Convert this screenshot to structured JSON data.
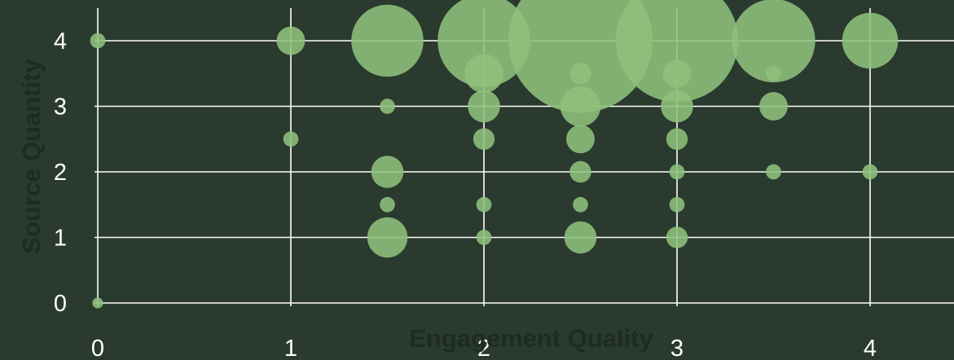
{
  "chart_data": {
    "type": "scatter",
    "variant": "bubble",
    "xlabel": "Engagement Quality",
    "ylabel": "Source Quantity",
    "xlim": [
      0,
      4.4
    ],
    "ylim": [
      0,
      4.4
    ],
    "x_ticks": [
      "0",
      "1",
      "2",
      "3",
      "4"
    ],
    "y_ticks": [
      "0",
      "1",
      "2",
      "3",
      "4"
    ],
    "grid": true,
    "legend": "none",
    "colors": {
      "background": "#2a3a2f",
      "marker": "#8ec07c",
      "grid": "#ffffff",
      "tick_text": "#ffffff",
      "axis_title": "#1d2b22"
    },
    "size_unit": "count",
    "points": [
      {
        "x": 0,
        "y": 0,
        "size": 1
      },
      {
        "x": 0,
        "y": 4,
        "size": 2
      },
      {
        "x": 1,
        "y": 2.5,
        "size": 2
      },
      {
        "x": 1,
        "y": 4,
        "size": 7
      },
      {
        "x": 1.5,
        "y": 1,
        "size": 14
      },
      {
        "x": 1.5,
        "y": 1.5,
        "size": 2
      },
      {
        "x": 1.5,
        "y": 2,
        "size": 9
      },
      {
        "x": 1.5,
        "y": 3,
        "size": 2
      },
      {
        "x": 1.5,
        "y": 4,
        "size": 45
      },
      {
        "x": 2,
        "y": 1,
        "size": 2
      },
      {
        "x": 2,
        "y": 1.5,
        "size": 2
      },
      {
        "x": 2,
        "y": 2.5,
        "size": 4
      },
      {
        "x": 2,
        "y": 3,
        "size": 9
      },
      {
        "x": 2,
        "y": 3.5,
        "size": 13
      },
      {
        "x": 2,
        "y": 4,
        "size": 74
      },
      {
        "x": 2.5,
        "y": 1,
        "size": 9
      },
      {
        "x": 2.5,
        "y": 1.5,
        "size": 2
      },
      {
        "x": 2.5,
        "y": 2,
        "size": 4
      },
      {
        "x": 2.5,
        "y": 2.5,
        "size": 7
      },
      {
        "x": 2.5,
        "y": 3,
        "size": 14
      },
      {
        "x": 2.5,
        "y": 3.5,
        "size": 4
      },
      {
        "x": 2.5,
        "y": 4,
        "size": 180
      },
      {
        "x": 3,
        "y": 1,
        "size": 4
      },
      {
        "x": 3,
        "y": 1.5,
        "size": 2
      },
      {
        "x": 3,
        "y": 2,
        "size": 2
      },
      {
        "x": 3,
        "y": 2.5,
        "size": 4
      },
      {
        "x": 3,
        "y": 3,
        "size": 9
      },
      {
        "x": 3,
        "y": 3.5,
        "size": 7
      },
      {
        "x": 3,
        "y": 4,
        "size": 130
      },
      {
        "x": 3.5,
        "y": 2,
        "size": 2
      },
      {
        "x": 3.5,
        "y": 3,
        "size": 7
      },
      {
        "x": 3.5,
        "y": 3.5,
        "size": 2
      },
      {
        "x": 3.5,
        "y": 4,
        "size": 60
      },
      {
        "x": 4,
        "y": 2,
        "size": 2
      },
      {
        "x": 4,
        "y": 4,
        "size": 27
      }
    ]
  }
}
